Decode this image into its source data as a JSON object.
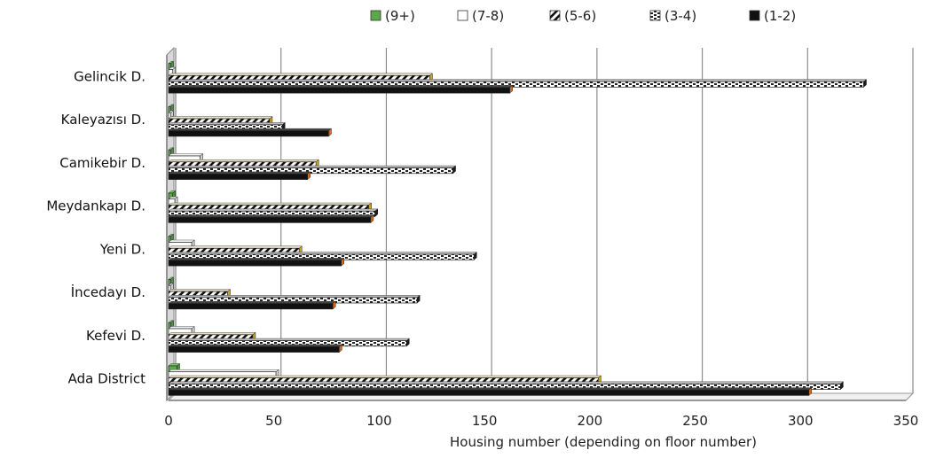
{
  "chart_data": {
    "type": "bar",
    "orientation": "horizontal",
    "title": "",
    "xlabel": "Housing number (depending on floor number)",
    "ylabel": "",
    "xlim": [
      0,
      350
    ],
    "x_ticks": [
      0,
      50,
      100,
      150,
      200,
      250,
      300,
      350
    ],
    "grid": true,
    "legend_position": "top",
    "categories": [
      "Gelincik D.",
      "Kaleyazısı D.",
      "Camikebir D.",
      "Meydankapı D.",
      "Yeni D.",
      "İncedayı D.",
      "Kefevi D.",
      "Ada District"
    ],
    "series": [
      {
        "name": "(9+)",
        "values": [
          1,
          1,
          1,
          2,
          1,
          1,
          1,
          4
        ],
        "color": "#5aa84a",
        "pattern": "solid"
      },
      {
        "name": "(7-8)",
        "values": [
          2,
          1,
          15,
          3,
          11,
          1,
          11,
          51
        ],
        "color": "#ffffff",
        "pattern": "white"
      },
      {
        "name": "(5-6)",
        "values": [
          124,
          48,
          70,
          95,
          62,
          28,
          40,
          204
        ],
        "color": "#c9a227",
        "pattern": "diagonal"
      },
      {
        "name": "(3-4)",
        "values": [
          330,
          54,
          135,
          98,
          145,
          118,
          113,
          319
        ],
        "color": "#222222",
        "pattern": "dotted"
      },
      {
        "name": "(1-2)",
        "values": [
          162,
          76,
          66,
          96,
          82,
          78,
          81,
          304
        ],
        "color": "#d2691e",
        "pattern": "black"
      }
    ]
  }
}
